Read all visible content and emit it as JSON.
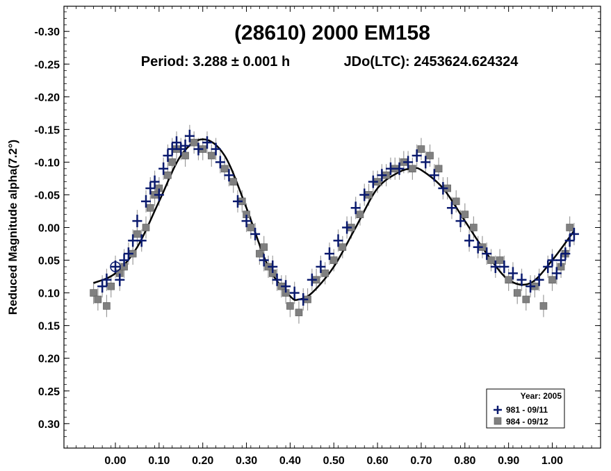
{
  "chart_data": {
    "type": "scatter",
    "title": "(28610) 2000 EM158",
    "subtitle_period": "Period: 3.288 ± 0.001 h",
    "subtitle_epoch": "JDo(LTC): 2453624.624324",
    "ylabel": "Reduced Magnitude alpha(7.2°)",
    "xlabel": "",
    "xlim": [
      -0.12,
      1.11
    ],
    "ylim": [
      -0.335,
      0.335
    ],
    "y_inverted": true,
    "x_ticks": [
      "0.00",
      "0.10",
      "0.20",
      "0.30",
      "0.40",
      "0.50",
      "0.60",
      "0.70",
      "0.80",
      "0.90",
      "1.00"
    ],
    "y_ticks": [
      "-0.30",
      "-0.25",
      "-0.20",
      "-0.15",
      "-0.10",
      "-0.05",
      "0.00",
      "0.05",
      "0.10",
      "0.15",
      "0.20",
      "0.25",
      "0.30"
    ],
    "grid": false,
    "legend_position": "bottom-right",
    "legend": {
      "title": "Year: 2005",
      "entries": [
        {
          "label": "981 - 09/11",
          "marker": "plus",
          "color": "#0a1a6e"
        },
        {
          "label": "984 - 09/12",
          "marker": "square",
          "color": "#808080"
        }
      ]
    },
    "fit_curve": {
      "color": "#000000",
      "x": [
        -0.05,
        0.0,
        0.05,
        0.1,
        0.15,
        0.2,
        0.25,
        0.3,
        0.35,
        0.4,
        0.42,
        0.45,
        0.5,
        0.55,
        0.6,
        0.65,
        0.68,
        0.7,
        0.75,
        0.8,
        0.85,
        0.9,
        0.95,
        1.0,
        1.05
      ],
      "y": [
        0.085,
        0.07,
        0.03,
        -0.04,
        -0.11,
        -0.135,
        -0.11,
        -0.03,
        0.06,
        0.105,
        0.11,
        0.1,
        0.06,
        0.0,
        -0.06,
        -0.085,
        -0.09,
        -0.088,
        -0.06,
        -0.01,
        0.04,
        0.08,
        0.085,
        0.05,
        0.005
      ]
    },
    "series": [
      {
        "name": "981 - 09/11",
        "marker": "plus",
        "color": "#0a1a6e",
        "x": [
          -0.03,
          -0.02,
          0.0,
          0.01,
          0.02,
          0.03,
          0.04,
          0.05,
          0.06,
          0.07,
          0.08,
          0.09,
          0.1,
          0.11,
          0.12,
          0.13,
          0.14,
          0.15,
          0.16,
          0.17,
          0.19,
          0.21,
          0.23,
          0.24,
          0.26,
          0.28,
          0.3,
          0.32,
          0.34,
          0.36,
          0.37,
          0.39,
          0.41,
          0.43,
          0.45,
          0.47,
          0.49,
          0.51,
          0.53,
          0.55,
          0.57,
          0.59,
          0.61,
          0.63,
          0.65,
          0.67,
          0.69,
          0.71,
          0.73,
          0.75,
          0.77,
          0.79,
          0.81,
          0.83,
          0.85,
          0.87,
          0.89,
          0.91,
          0.93,
          0.95,
          0.97,
          0.99,
          1.0,
          1.01,
          1.02,
          1.03,
          1.04,
          1.05
        ],
        "y": [
          0.09,
          0.08,
          0.06,
          0.08,
          0.05,
          0.04,
          0.02,
          -0.01,
          0.02,
          -0.04,
          -0.06,
          -0.07,
          -0.05,
          -0.09,
          -0.11,
          -0.12,
          -0.13,
          -0.12,
          -0.125,
          -0.14,
          -0.12,
          -0.13,
          -0.12,
          -0.1,
          -0.08,
          -0.04,
          -0.01,
          0.01,
          0.05,
          0.06,
          0.08,
          0.09,
          0.1,
          0.11,
          0.08,
          0.06,
          0.04,
          0.02,
          0.0,
          -0.03,
          -0.05,
          -0.07,
          -0.08,
          -0.09,
          -0.09,
          -0.1,
          -0.11,
          -0.1,
          -0.08,
          -0.06,
          -0.03,
          -0.01,
          0.02,
          0.03,
          0.04,
          0.06,
          0.06,
          0.07,
          0.08,
          0.09,
          0.08,
          0.06,
          0.05,
          0.07,
          0.05,
          0.04,
          0.02,
          0.01
        ]
      },
      {
        "name": "984 - 09/12",
        "marker": "square",
        "color": "#808080",
        "x": [
          -0.05,
          -0.04,
          -0.02,
          -0.01,
          0.01,
          0.02,
          0.04,
          0.05,
          0.07,
          0.08,
          0.09,
          0.1,
          0.12,
          0.13,
          0.14,
          0.16,
          0.18,
          0.2,
          0.22,
          0.25,
          0.27,
          0.29,
          0.3,
          0.31,
          0.33,
          0.34,
          0.35,
          0.36,
          0.38,
          0.39,
          0.4,
          0.42,
          0.44,
          0.46,
          0.48,
          0.5,
          0.52,
          0.54,
          0.56,
          0.58,
          0.6,
          0.62,
          0.64,
          0.66,
          0.68,
          0.7,
          0.72,
          0.74,
          0.76,
          0.78,
          0.8,
          0.82,
          0.84,
          0.86,
          0.88,
          0.9,
          0.92,
          0.94,
          0.96,
          0.98,
          1.0,
          1.02,
          1.03,
          1.04
        ],
        "y": [
          0.1,
          0.11,
          0.12,
          0.09,
          0.07,
          0.06,
          0.04,
          0.01,
          0.0,
          -0.03,
          -0.05,
          -0.06,
          -0.08,
          -0.1,
          -0.12,
          -0.11,
          -0.13,
          -0.12,
          -0.11,
          -0.09,
          -0.07,
          -0.04,
          -0.02,
          0.0,
          0.04,
          0.03,
          0.06,
          0.07,
          0.09,
          0.1,
          0.12,
          0.13,
          0.11,
          0.08,
          0.07,
          0.05,
          0.03,
          0.0,
          -0.02,
          -0.05,
          -0.07,
          -0.08,
          -0.09,
          -0.1,
          -0.09,
          -0.12,
          -0.11,
          -0.09,
          -0.06,
          -0.04,
          -0.02,
          0.0,
          0.03,
          0.05,
          0.05,
          0.08,
          0.1,
          0.11,
          0.09,
          0.12,
          0.08,
          0.06,
          0.04,
          0.0
        ]
      }
    ]
  }
}
